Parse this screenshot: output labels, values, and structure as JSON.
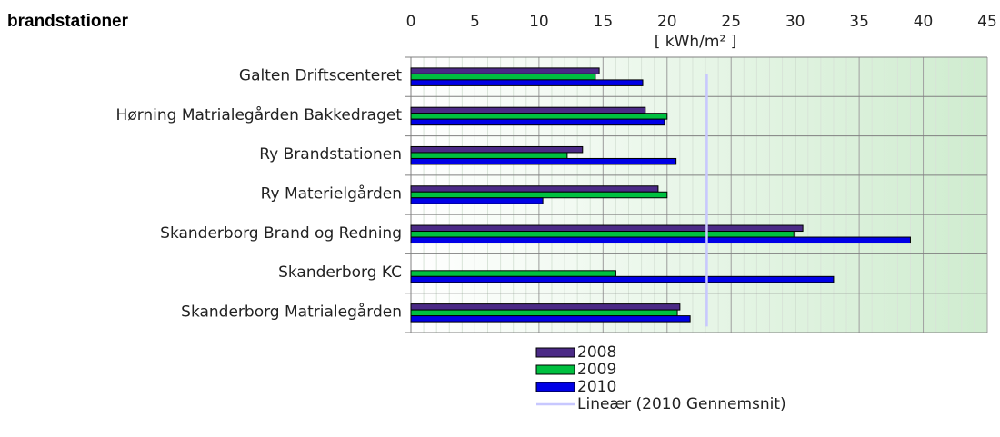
{
  "chart_data": {
    "type": "barh",
    "title": "brandstationer",
    "x_label": "[ kWh/m² ]",
    "categories": [
      "Galten Driftscenteret",
      "Hørning Matrialegården Bakkedraget",
      "Ry Brandstationen",
      "Ry Materielgården",
      "Skanderborg Brand og Redning",
      "Skanderborg KC",
      "Skanderborg Matrialegården"
    ],
    "series": [
      {
        "name": "2008",
        "color": "#4b2a86",
        "values": [
          14.7,
          18.3,
          13.4,
          19.3,
          30.6,
          null,
          21.0
        ]
      },
      {
        "name": "2009",
        "color": "#00c040",
        "values": [
          14.4,
          20.0,
          12.2,
          20.0,
          29.9,
          16.0,
          20.8
        ]
      },
      {
        "name": "2010",
        "color": "#0000e6",
        "values": [
          18.1,
          19.8,
          20.7,
          10.3,
          39.0,
          33.0,
          21.8
        ]
      }
    ],
    "trend": {
      "name": "Lineær (2010 Gennemsnit)",
      "color": "#c8c8ff",
      "value": 23.1
    },
    "xlim": [
      0,
      45
    ],
    "xticks": [
      0,
      5,
      10,
      15,
      20,
      25,
      30,
      35,
      40,
      45
    ],
    "grid": true
  }
}
